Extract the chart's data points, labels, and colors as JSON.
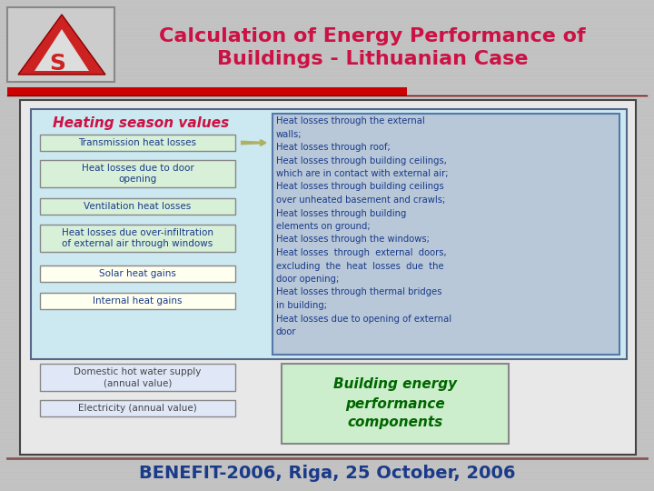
{
  "title_line1": "Calculation of Energy Performance of",
  "title_line2": "Buildings - Lithuanian Case",
  "title_color": "#cc1144",
  "slide_bg": "#c0c0c0",
  "footer_text": "BENEFIT-2006, Riga, 25 October, 2006",
  "footer_color": "#1a3a8a",
  "section_heading": "Heating season values",
  "section_heading_color": "#cc1144",
  "left_boxes": [
    {
      "text": "Transmission heat losses",
      "bg": "#d8f0d8",
      "border": "#888888"
    },
    {
      "text": "Heat losses due to door\nopening",
      "bg": "#d8f0d8",
      "border": "#888888"
    },
    {
      "text": "Ventilation heat losses",
      "bg": "#d8f0d8",
      "border": "#888888"
    },
    {
      "text": "Heat losses due over-infiltration\nof external air through windows",
      "bg": "#d8f0d8",
      "border": "#888888"
    },
    {
      "text": "Solar heat gains",
      "bg": "#fffff0",
      "border": "#888888"
    },
    {
      "text": "Internal heat gains",
      "bg": "#fffff0",
      "border": "#888888"
    }
  ],
  "right_text_lines": [
    "Heat losses through the external",
    "walls;",
    "Heat losses through roof;",
    "Heat losses through building ceilings,",
    "which are in contact with external air;",
    "Heat losses through building ceilings",
    "over unheated basement and crawls;",
    "Heat losses through building",
    "elements on ground;",
    "Heat losses through the windows;",
    "Heat losses  through  external  doors,",
    "excluding  the  heat  losses  due  the",
    "door opening;",
    "Heat losses through thermal bridges",
    "in building;",
    "Heat losses due to opening of external",
    "door"
  ],
  "right_text_color": "#1a3a8a",
  "right_bg": "#b8c8d8",
  "bottom_left_boxes": [
    {
      "text": "Domestic hot water supply\n(annual value)",
      "bg": "#e0e8f8",
      "border": "#888888"
    },
    {
      "text": "Electricity (annual value)",
      "bg": "#e0e8f8",
      "border": "#888888"
    }
  ],
  "bottom_right_text": "Building energy\nperformance\ncomponents",
  "bottom_right_color": "#006600",
  "bottom_right_bg": "#cceecc",
  "main_box_bg": "#cce8f0",
  "main_box_border": "#556688",
  "outer_box_bg": "#e8e8e8",
  "outer_box_border": "#444444",
  "red_bar_color": "#cc0000",
  "dark_line_color": "#800000",
  "arrow_color": "#b0b060",
  "logo_bg": "#cccccc",
  "logo_border": "#888888",
  "logo_a_color": "#cc2222"
}
